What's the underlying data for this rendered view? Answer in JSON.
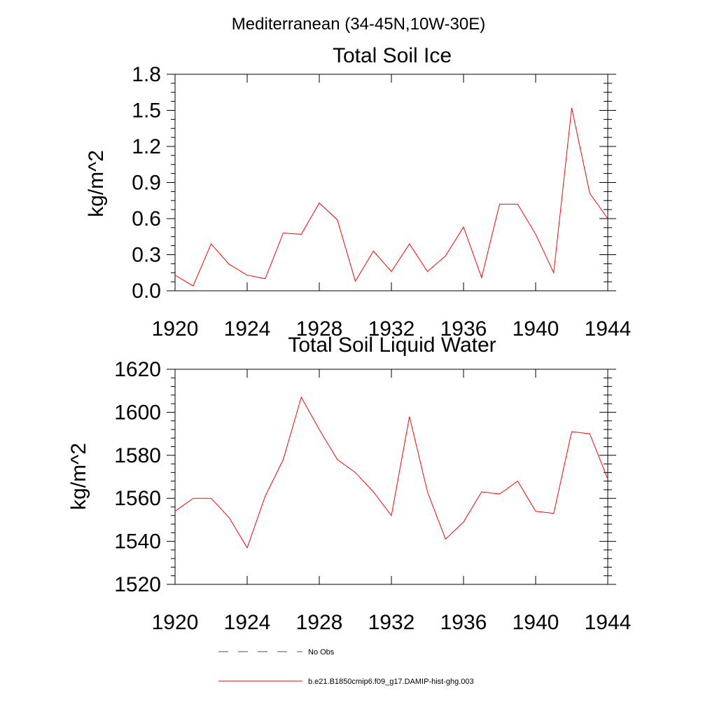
{
  "figure": {
    "suptitle": "Mediterranean (34-45N,10W-30E)"
  },
  "chart_data": [
    {
      "type": "line",
      "title": "Total Soil Ice",
      "xlabel": "",
      "ylabel": "kg/m^2",
      "xlim": [
        1920,
        1944
      ],
      "ylim": [
        0.0,
        1.8
      ],
      "xticks": [
        1920,
        1924,
        1928,
        1932,
        1936,
        1940,
        1944
      ],
      "xtick_labels": [
        "1920",
        "1924",
        "1928",
        "1932",
        "1936",
        "1940",
        "1944"
      ],
      "yticks": [
        0.0,
        0.3,
        0.6,
        0.9,
        1.2,
        1.5,
        1.8
      ],
      "ytick_labels": [
        "0.0",
        "0.3",
        "0.6",
        "0.9",
        "1.2",
        "1.5",
        "1.8"
      ],
      "grid": false,
      "series": [
        {
          "name": "b.e21.B1850cmip6.f09_g17.DAMIP-hist-ghg.003",
          "color": "#ff0000",
          "x": [
            1920,
            1921,
            1922,
            1923,
            1924,
            1925,
            1926,
            1927,
            1928,
            1929,
            1930,
            1931,
            1932,
            1933,
            1934,
            1935,
            1936,
            1937,
            1938,
            1939,
            1940,
            1941,
            1942,
            1943,
            1944
          ],
          "y": [
            0.13,
            0.04,
            0.39,
            0.22,
            0.13,
            0.1,
            0.48,
            0.47,
            0.73,
            0.59,
            0.08,
            0.33,
            0.16,
            0.39,
            0.16,
            0.29,
            0.53,
            0.11,
            0.72,
            0.72,
            0.47,
            0.15,
            1.52,
            0.81,
            0.6
          ]
        }
      ]
    },
    {
      "type": "line",
      "title": "Total Soil Liquid Water",
      "xlabel": "",
      "ylabel": "kg/m^2",
      "xlim": [
        1920,
        1944
      ],
      "ylim": [
        1520,
        1620
      ],
      "xticks": [
        1920,
        1924,
        1928,
        1932,
        1936,
        1940,
        1944
      ],
      "xtick_labels": [
        "1920",
        "1924",
        "1928",
        "1932",
        "1936",
        "1940",
        "1944"
      ],
      "yticks": [
        1520,
        1540,
        1560,
        1580,
        1600,
        1620
      ],
      "ytick_labels": [
        "1520",
        "1540",
        "1560",
        "1580",
        "1600",
        "1620"
      ],
      "grid": false,
      "series": [
        {
          "name": "b.e21.B1850cmip6.f09_g17.DAMIP-hist-ghg.003",
          "color": "#ff0000",
          "x": [
            1920,
            1921,
            1922,
            1923,
            1924,
            1925,
            1926,
            1927,
            1928,
            1929,
            1930,
            1931,
            1932,
            1933,
            1934,
            1935,
            1936,
            1937,
            1938,
            1939,
            1940,
            1941,
            1942,
            1943,
            1944
          ],
          "y": [
            1554,
            1560,
            1560,
            1551,
            1537,
            1561,
            1578,
            1607,
            1592,
            1578,
            1572,
            1563,
            1552,
            1598,
            1563,
            1541,
            1549,
            1563,
            1562,
            1568,
            1554,
            1553,
            1591,
            1590,
            1569
          ]
        }
      ]
    }
  ],
  "legend": {
    "placement": "bottom",
    "entries": [
      {
        "label": "No Obs",
        "color": "#4a4a8c",
        "style": "dashed"
      },
      {
        "label": "b.e21.B1850cmip6.f09_g17.DAMIP-hist-ghg.003",
        "color": "#ff0000",
        "style": "solid"
      }
    ]
  }
}
